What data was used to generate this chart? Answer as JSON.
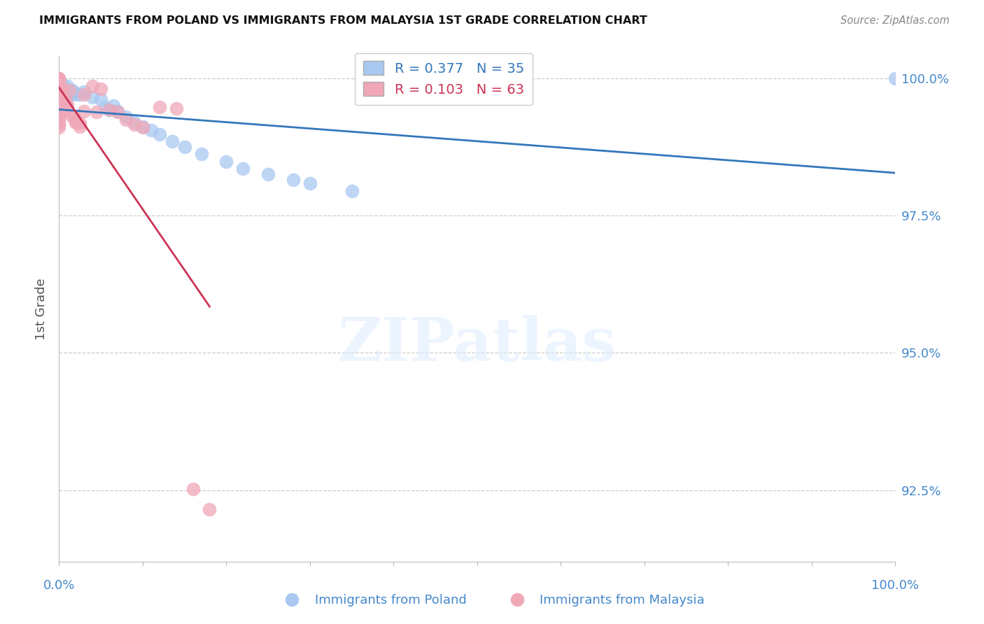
{
  "title": "IMMIGRANTS FROM POLAND VS IMMIGRANTS FROM MALAYSIA 1ST GRADE CORRELATION CHART",
  "source": "Source: ZipAtlas.com",
  "ylabel": "1st Grade",
  "ytick_labels": [
    "92.5%",
    "95.0%",
    "97.5%",
    "100.0%"
  ],
  "ytick_values": [
    0.925,
    0.95,
    0.975,
    1.0
  ],
  "xlim": [
    0,
    1.0
  ],
  "ylim": [
    0.912,
    1.004
  ],
  "legend_label1": "Immigrants from Poland",
  "legend_label2": "Immigrants from Malaysia",
  "legend_R1": "R = 0.377",
  "legend_N1": "N = 35",
  "legend_R2": "R = 0.103",
  "legend_N2": "N = 63",
  "poland_color": "#a8c8f0",
  "malaysia_color": "#f0a8b8",
  "poland_line_color": "#3377bb",
  "malaysia_line_color": "#cc3355",
  "background_color": "#ffffff",
  "grid_color": "#cccccc",
  "title_color": "#111111",
  "right_axis_color": "#4488cc",
  "watermark_text": "ZIPatlas",
  "poland_x": [
    0.001,
    0.002,
    0.003,
    0.004,
    0.005,
    0.008,
    0.01,
    0.012,
    0.014,
    0.016,
    0.018,
    0.02,
    0.025,
    0.03,
    0.04,
    0.05,
    0.055,
    0.06,
    0.065,
    0.07,
    0.08,
    0.09,
    0.1,
    0.11,
    0.12,
    0.135,
    0.15,
    0.17,
    0.2,
    0.22,
    0.25,
    0.28,
    0.3,
    0.35,
    1.0
  ],
  "poland_y": [
    0.9988,
    0.9992,
    0.999,
    0.9985,
    0.9982,
    0.9975,
    0.9985,
    0.9978,
    0.9972,
    0.9978,
    0.9974,
    0.997,
    0.997,
    0.9975,
    0.9965,
    0.9962,
    0.9948,
    0.9942,
    0.995,
    0.994,
    0.993,
    0.992,
    0.9912,
    0.9905,
    0.9898,
    0.9885,
    0.9875,
    0.9862,
    0.9848,
    0.9835,
    0.9825,
    0.9815,
    0.9808,
    0.9795,
    1.0
  ],
  "malaysia_x": [
    0.0,
    0.0,
    0.0,
    0.0,
    0.0,
    0.0,
    0.0,
    0.0,
    0.0,
    0.0,
    0.0,
    0.0,
    0.0,
    0.0,
    0.0,
    0.0,
    0.0,
    0.0,
    0.0,
    0.0,
    0.0,
    0.0,
    0.0,
    0.0,
    0.0,
    0.0,
    0.0,
    0.001,
    0.001,
    0.001,
    0.001,
    0.002,
    0.002,
    0.002,
    0.003,
    0.004,
    0.005,
    0.006,
    0.007,
    0.008,
    0.009,
    0.01,
    0.012,
    0.015,
    0.018,
    0.02,
    0.025,
    0.03,
    0.04,
    0.045,
    0.05,
    0.06,
    0.07,
    0.08,
    0.09,
    0.1,
    0.12,
    0.14,
    0.16,
    0.18,
    0.02,
    0.025,
    0.03
  ],
  "malaysia_y": [
    1.0,
    1.0,
    0.9998,
    0.9996,
    0.9994,
    0.9992,
    0.999,
    0.9988,
    0.9985,
    0.9982,
    0.998,
    0.9978,
    0.9975,
    0.9972,
    0.9968,
    0.9965,
    0.996,
    0.9955,
    0.995,
    0.9945,
    0.994,
    0.9935,
    0.993,
    0.9925,
    0.992,
    0.9915,
    0.991,
    0.9985,
    0.998,
    0.9975,
    0.997,
    0.998,
    0.9975,
    0.997,
    0.9978,
    0.9965,
    0.995,
    0.9945,
    0.994,
    0.9958,
    0.9953,
    0.995,
    0.9978,
    0.9932,
    0.9928,
    0.9922,
    0.9918,
    0.997,
    0.9985,
    0.9938,
    0.998,
    0.9942,
    0.9938,
    0.9925,
    0.9915,
    0.991,
    0.9948,
    0.9945,
    0.9252,
    0.9215,
    0.992,
    0.9912,
    0.994
  ]
}
